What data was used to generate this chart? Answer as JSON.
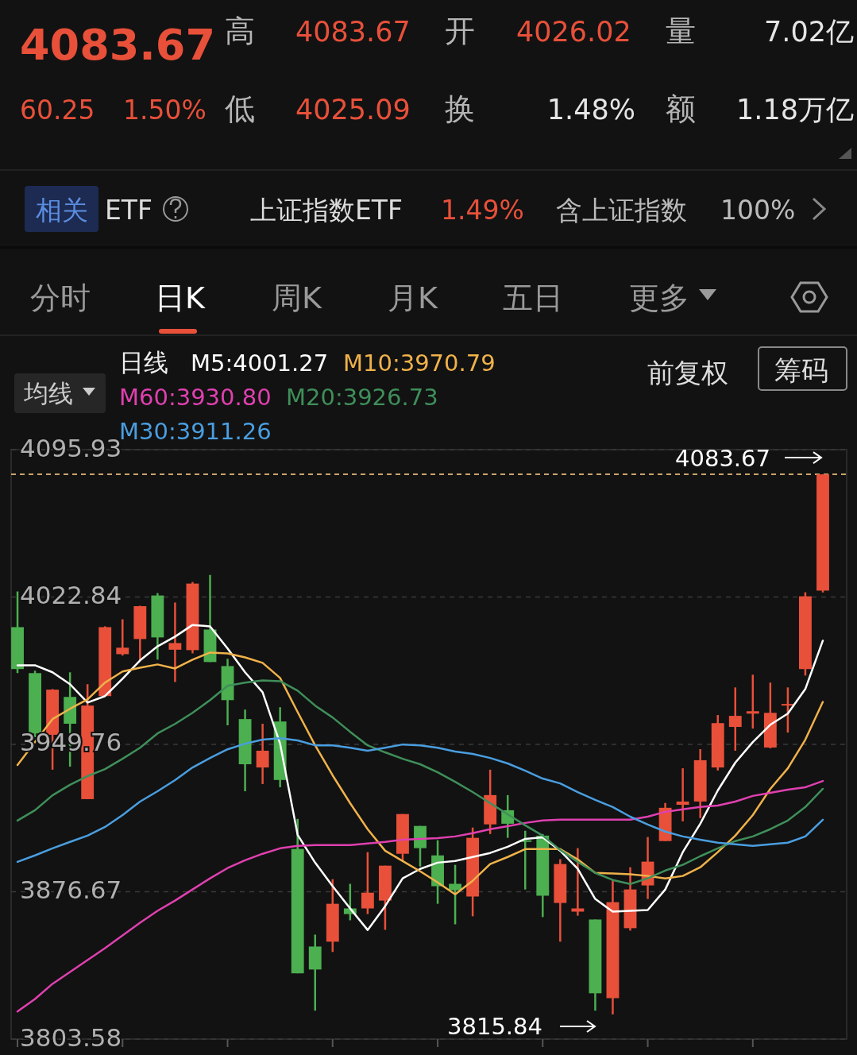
{
  "chart_data": {
    "type": "candlestick",
    "legend_title": "日线",
    "legend": "top left",
    "grid": "y",
    "tick_labels": "y",
    "categories": [
      null,
      null,
      null,
      null,
      null,
      null,
      null,
      null,
      null,
      null,
      null,
      null,
      null,
      null,
      null,
      null,
      null,
      null,
      null,
      null,
      null,
      null,
      null,
      null,
      null,
      null,
      null,
      null,
      null,
      null,
      null,
      null,
      null,
      null,
      null,
      null,
      null,
      null,
      null,
      null,
      null,
      null,
      null,
      null,
      null,
      null,
      null
    ],
    "ylim": [
      3803.58,
      4095.93
    ],
    "yticks": [
      4095.93,
      4022.84,
      3949.76,
      3876.67,
      3803.58
    ],
    "ohlc": [
      [
        4007.9,
        4025.6,
        3985.1,
        3987.1
      ],
      [
        3985.1,
        3986.3,
        3953.3,
        3955.2
      ],
      [
        3954.5,
        3977.2,
        3937.2,
        3976.9
      ],
      [
        3973.3,
        3985.5,
        3938.7,
        3960.0
      ],
      [
        3922.6,
        3979.6,
        3922.6,
        3969.0
      ],
      [
        3973.7,
        4008.3,
        3973.7,
        4007.9
      ],
      [
        3994.5,
        4011.8,
        3993.8,
        3997.7
      ],
      [
        4002.0,
        4018.5,
        3991.0,
        4018.3
      ],
      [
        4023.6,
        4024.8,
        3991.8,
        4002.8
      ],
      [
        3996.7,
        4020.1,
        3980.7,
        4000.0
      ],
      [
        3996.5,
        4030.3,
        3994.9,
        4029.5
      ],
      [
        4006.7,
        4033.8,
        3990.6,
        3990.6
      ],
      [
        3988.6,
        3992.2,
        3959.2,
        3971.7
      ],
      [
        3962.3,
        3967.0,
        3926.5,
        3939.9
      ],
      [
        3938.3,
        3960.0,
        3930.1,
        3946.6
      ],
      [
        3961.1,
        3968.2,
        3928.5,
        3932.1
      ],
      [
        3897.9,
        3912.8,
        3836.2,
        3836.2
      ],
      [
        3849.5,
        3855.4,
        3817.7,
        3838.1
      ],
      [
        3851.9,
        3882.9,
        3846.8,
        3870.7
      ],
      [
        3868.4,
        3880.6,
        3862.5,
        3865.6
      ],
      [
        3868.4,
        3896.3,
        3865.6,
        3876.2
      ],
      [
        3872.3,
        3889.6,
        3857.8,
        3889.6
      ],
      [
        3895.5,
        3915.2,
        3892.0,
        3915.2
      ],
      [
        3909.3,
        3909.3,
        3889.2,
        3898.3
      ],
      [
        3894.7,
        3902.2,
        3870.7,
        3879.4
      ],
      [
        3880.6,
        3890.0,
        3860.5,
        3877.4
      ],
      [
        3874.3,
        3908.5,
        3864.5,
        3903.4
      ],
      [
        3910.1,
        3937.2,
        3905.3,
        3924.6
      ],
      [
        3917.1,
        3924.6,
        3903.4,
        3910.4
      ],
      [
        3902.2,
        3906.9,
        3877.8,
        3901.4
      ],
      [
        3904.5,
        3905.3,
        3864.1,
        3874.7
      ],
      [
        3871.1,
        3892.8,
        3851.9,
        3890.4
      ],
      [
        3866.8,
        3898.3,
        3864.8,
        3868.4
      ],
      [
        3862.9,
        3862.9,
        3817.7,
        3826.3
      ],
      [
        3823.9,
        3882.5,
        3815.84,
        3871.5
      ],
      [
        3858.6,
        3888.8,
        3857.4,
        3877.8
      ],
      [
        3879.8,
        3903.8,
        3873.1,
        3891.6
      ],
      [
        3901.8,
        3920.7,
        3901.8,
        3918.3
      ],
      [
        3919.8,
        3937.9,
        3911.6,
        3921.4
      ],
      [
        3921.4,
        3947.4,
        3913.2,
        3941.9
      ],
      [
        3938.3,
        3964.3,
        3936.8,
        3960.3
      ],
      [
        3958.4,
        3978.0,
        3946.6,
        3963.9
      ],
      [
        3965.0,
        3984.3,
        3957.6,
        3966.2
      ],
      [
        3948.2,
        3980.4,
        3947.8,
        3965.4
      ],
      [
        3969.4,
        3978.0,
        3955.6,
        3969.8
      ],
      [
        3987.1,
        4025.2,
        3983.9,
        4023.2
      ],
      [
        4026.02,
        4083.67,
        4025.09,
        4083.67
      ]
    ],
    "colors": [
      "#4caf50",
      "#4caf50",
      "#e8503a",
      "#4caf50",
      "#e8503a",
      "#e8503a",
      "#e8503a",
      "#e8503a",
      "#4caf50",
      "#e8503a",
      "#e8503a",
      "#4caf50",
      "#4caf50",
      "#4caf50",
      "#e8503a",
      "#4caf50",
      "#4caf50",
      "#4caf50",
      "#e8503a",
      "#4caf50",
      "#e8503a",
      "#e8503a",
      "#e8503a",
      "#4caf50",
      "#4caf50",
      "#4caf50",
      "#e8503a",
      "#e8503a",
      "#4caf50",
      "#4caf50",
      "#4caf50",
      "#e8503a",
      "#e8503a",
      "#4caf50",
      "#e8503a",
      "#e8503a",
      "#e8503a",
      "#e8503a",
      "#e8503a",
      "#e8503a",
      "#e8503a",
      "#e8503a",
      "#e8503a",
      "#e8503a",
      "#e8503a",
      "#e8503a",
      "#e8503a"
    ],
    "series": [
      {
        "name": "M5:4001.27",
        "type": "line",
        "color": "#ffffff",
        "values": [
          3989.0,
          3989.0,
          3985.5,
          3979.6,
          3970.5,
          3973.7,
          3982.3,
          3991.4,
          3998.4,
          4003.2,
          4009.0,
          4008.3,
          3997.3,
          3985.5,
          3975.6,
          3950.1,
          3904.9,
          3891.1,
          3879.4,
          3868.4,
          3857.7,
          3869.5,
          3883.3,
          3888.0,
          3891.1,
          3891.9,
          3893.9,
          3895.9,
          3899.0,
          3902.9,
          3903.7,
          3897.0,
          3888.0,
          3873.1,
          3866.8,
          3867.2,
          3867.6,
          3877.8,
          3896.3,
          3910.4,
          3926.9,
          3940.7,
          3950.9,
          3959.5,
          3965.0,
          3977.2,
          4001.2
        ]
      },
      {
        "name": "M10:3970.79",
        "type": "line",
        "color": "#f0b24a",
        "values": [
          3939.5,
          3950.9,
          3962.3,
          3967.4,
          3972.1,
          3980.4,
          3985.9,
          3987.8,
          3989.4,
          3987.4,
          3991.8,
          3995.3,
          3994.9,
          3992.9,
          3990.2,
          3982.7,
          3965.8,
          3949.3,
          3934.4,
          3920.6,
          3907.7,
          3897.0,
          3891.9,
          3886.8,
          3881.3,
          3875.4,
          3882.1,
          3890.4,
          3893.9,
          3897.8,
          3897.8,
          3897.8,
          3892.7,
          3886.0,
          3885.7,
          3885.3,
          3884.5,
          3883.3,
          3884.5,
          3888.8,
          3896.3,
          3904.5,
          3914.7,
          3927.7,
          3937.9,
          3952.1,
          3970.8
        ]
      },
      {
        "name": "M60:3930.80",
        "type": "line",
        "color": "#e040b0",
        "values": [
          3817.3,
          3823.5,
          3831.0,
          3836.9,
          3842.8,
          3848.7,
          3855.0,
          3861.3,
          3867.2,
          3872.3,
          3877.8,
          3883.3,
          3888.4,
          3892.3,
          3895.5,
          3898.2,
          3899.4,
          3899.8,
          3899.8,
          3899.8,
          3900.6,
          3901.4,
          3902.5,
          3902.9,
          3903.3,
          3904.1,
          3905.7,
          3907.7,
          3909.2,
          3910.8,
          3912.0,
          3912.4,
          3912.4,
          3912.4,
          3912.4,
          3912.4,
          3913.9,
          3916.3,
          3917.5,
          3918.7,
          3919.4,
          3921.4,
          3924.2,
          3925.7,
          3927.3,
          3928.5,
          3931.6
        ]
      },
      {
        "name": "M20:3926.73",
        "type": "line",
        "color": "#3f8f5a",
        "values": [
          3912.0,
          3917.1,
          3924.5,
          3929.7,
          3934.0,
          3937.5,
          3942.6,
          3948.1,
          3955.2,
          3959.9,
          3965.4,
          3971.7,
          3978.8,
          3980.4,
          3981.5,
          3981.1,
          3976.4,
          3969.0,
          3963.1,
          3956.0,
          3949.3,
          3945.8,
          3942.6,
          3939.9,
          3935.9,
          3931.2,
          3926.1,
          3920.6,
          3915.1,
          3909.6,
          3904.5,
          3897.4,
          3891.5,
          3886.0,
          3882.5,
          3880.5,
          3883.3,
          3887.2,
          3890.0,
          3894.3,
          3898.2,
          3901.8,
          3904.1,
          3907.7,
          3912.0,
          3918.7,
          3927.7
        ]
      },
      {
        "name": "M30:3911.26",
        "type": "line",
        "color": "#4a9ee0",
        "values": [
          3891.5,
          3894.7,
          3898.2,
          3901.4,
          3904.5,
          3908.8,
          3914.7,
          3921.4,
          3926.5,
          3932.0,
          3938.3,
          3943.0,
          3947.3,
          3950.1,
          3952.1,
          3952.8,
          3951.7,
          3949.3,
          3949.3,
          3948.1,
          3946.6,
          3948.1,
          3949.7,
          3949.3,
          3948.1,
          3946.2,
          3945.0,
          3943.0,
          3940.3,
          3936.7,
          3932.8,
          3930.4,
          3926.1,
          3922.2,
          3918.7,
          3913.9,
          3910.0,
          3906.5,
          3904.1,
          3902.5,
          3901.0,
          3900.2,
          3899.4,
          3900.2,
          3901.0,
          3904.1,
          3912.4
        ]
      }
    ],
    "ref_lines": [
      {
        "axis": "y",
        "value": 4083.67,
        "label": "4083.67",
        "color": "#c9a46a",
        "line_style": "dashed"
      }
    ],
    "annotations": [
      "4083.67",
      "高",
      "4083.67",
      "开",
      "4026.02",
      "量",
      "7.02亿",
      "60.25",
      "1.50%",
      "低",
      "4025.09",
      "换",
      "1.48%",
      "额",
      "1.18万亿",
      "相关",
      "ETF",
      "上证指数ETF",
      "1.49%",
      "含上证指数",
      "100%",
      "分时",
      "日K",
      "周K",
      "月K",
      "五日",
      "更多",
      "均线",
      "前复权",
      "筹码",
      "3815.84"
    ]
  }
}
